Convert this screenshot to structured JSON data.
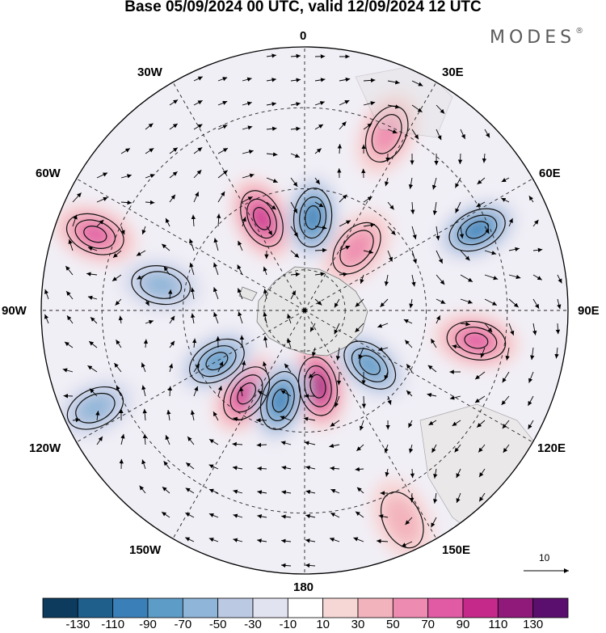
{
  "title": "Base 05/09/2024 00 UTC, valid 12/09/2024 12 UTC",
  "brand": "MODES",
  "brand_mark": "®",
  "meridians": {
    "m0": "0",
    "m30e": "30E",
    "m60e": "60E",
    "m90e": "90E",
    "m120e": "120E",
    "m150e": "150E",
    "m180": "180",
    "m150w": "150W",
    "m120w": "120W",
    "m90w": "90W",
    "m60w": "60W",
    "m30w": "30W"
  },
  "reference_vector": "10",
  "colorbar": {
    "ticks": [
      "-130",
      "-110",
      "-90",
      "-70",
      "-50",
      "-30",
      "-10",
      "10",
      "30",
      "50",
      "70",
      "90",
      "110",
      "130"
    ],
    "colors": [
      "#0d3b5e",
      "#1f5f8c",
      "#3b7fb8",
      "#5e9cc8",
      "#8fb5d8",
      "#bcc9e3",
      "#e2e3f1",
      "#ffffff",
      "#f7d6d6",
      "#f3b3bd",
      "#ee8bb0",
      "#e05aa4",
      "#c52a8a",
      "#8f1a7a",
      "#5a0f6e"
    ]
  },
  "features": {
    "highs": [
      {
        "lon": 25,
        "colat": 48,
        "strength": 2
      },
      {
        "lon": 100,
        "colat": 43,
        "strength": 3
      },
      {
        "lon": 290,
        "colat": 55,
        "strength": 3
      },
      {
        "lon": 335,
        "colat": 25,
        "strength": 4
      },
      {
        "lon": 215,
        "colat": 25,
        "strength": 4
      },
      {
        "lon": 170,
        "colat": 19,
        "strength": 5
      },
      {
        "lon": 40,
        "colat": 20,
        "strength": 2
      },
      {
        "lon": 155,
        "colat": 57,
        "strength": 1
      }
    ],
    "lows": [
      {
        "lon": 65,
        "colat": 47,
        "strength": 4
      },
      {
        "lon": 5,
        "colat": 23,
        "strength": 4
      },
      {
        "lon": 240,
        "colat": 25,
        "strength": 3
      },
      {
        "lon": 195,
        "colat": 23,
        "strength": 4
      },
      {
        "lon": 130,
        "colat": 21,
        "strength": 3
      },
      {
        "lon": 280,
        "colat": 36,
        "strength": 2
      },
      {
        "lon": 245,
        "colat": 57,
        "strength": 2
      }
    ]
  }
}
